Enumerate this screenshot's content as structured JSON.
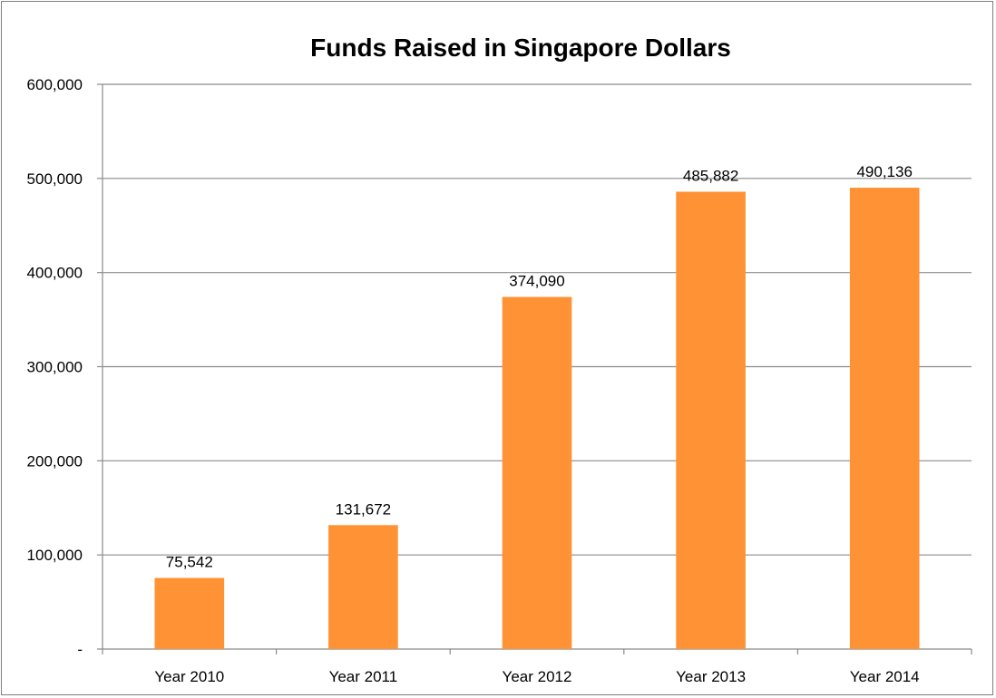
{
  "chart_data": {
    "type": "bar",
    "title": "Funds Raised in Singapore Dollars",
    "categories": [
      "Year 2010",
      "Year 2011",
      "Year 2012",
      "Year 2013",
      "Year 2014"
    ],
    "values": [
      75542,
      131672,
      374090,
      485882,
      490136
    ],
    "data_labels": [
      "75,542",
      "131,672",
      "374,090",
      "485,882",
      "490,136"
    ],
    "ylim": [
      0,
      600000
    ],
    "yticks": [
      0,
      100000,
      200000,
      300000,
      400000,
      500000,
      600000
    ],
    "ytick_labels": [
      "-",
      "100,000",
      "200,000",
      "300,000",
      "400,000",
      "500,000",
      "600,000"
    ],
    "grid": true,
    "legend": "none",
    "colors": {
      "bar": "#ff9234",
      "grid": "#8c8c8c",
      "axis": "#8c8c8c"
    }
  }
}
